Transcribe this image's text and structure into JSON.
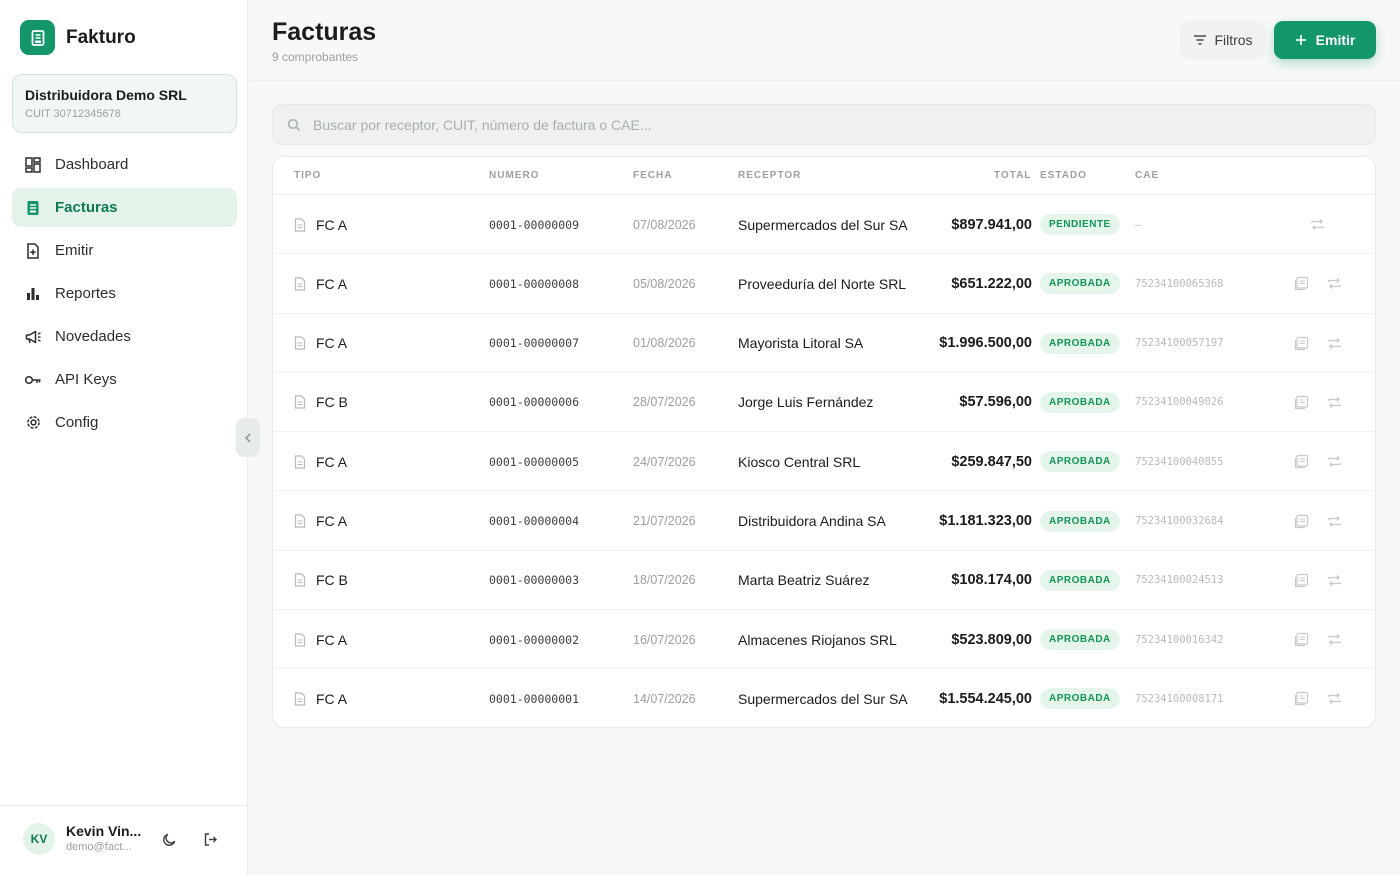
{
  "brand": {
    "name": "Fakturo"
  },
  "org": {
    "name": "Distribuidora Demo SRL",
    "cuit": "CUIT 30712345678"
  },
  "nav": [
    {
      "label": "Dashboard",
      "icon": "dashboard-icon"
    },
    {
      "label": "Facturas",
      "icon": "invoice-icon",
      "active": true
    },
    {
      "label": "Emitir",
      "icon": "file-plus-icon"
    },
    {
      "label": "Reportes",
      "icon": "bar-chart-icon"
    },
    {
      "label": "Novedades",
      "icon": "megaphone-icon"
    },
    {
      "label": "API Keys",
      "icon": "key-icon"
    },
    {
      "label": "Config",
      "icon": "gear-icon"
    }
  ],
  "user": {
    "initials": "KV",
    "name": "Kevin Vin...",
    "email": "demo@fact..."
  },
  "header": {
    "title": "Facturas",
    "subtitle": "9 comprobantes",
    "filter_label": "Filtros",
    "emit_label": "Emitir"
  },
  "search": {
    "placeholder": "Buscar por receptor, CUIT, número de factura o CAE..."
  },
  "table": {
    "columns": {
      "tipo": "TIPO",
      "numero": "NUMERO",
      "fecha": "FECHA",
      "receptor": "RECEPTOR",
      "total": "TOTAL",
      "estado": "ESTADO",
      "cae": "CAE"
    },
    "rows": [
      {
        "tipo": "FC A",
        "numero": "0001-00000009",
        "fecha": "07/08/2026",
        "receptor": "Supermercados del Sur SA",
        "total": "$897.941,00",
        "estado": "PENDIENTE",
        "cae": "–"
      },
      {
        "tipo": "FC A",
        "numero": "0001-00000008",
        "fecha": "05/08/2026",
        "receptor": "Proveeduría del Norte SRL",
        "total": "$651.222,00",
        "estado": "APROBADA",
        "cae": "75234100065368"
      },
      {
        "tipo": "FC A",
        "numero": "0001-00000007",
        "fecha": "01/08/2026",
        "receptor": "Mayorista Litoral SA",
        "total": "$1.996.500,00",
        "estado": "APROBADA",
        "cae": "75234100057197"
      },
      {
        "tipo": "FC B",
        "numero": "0001-00000006",
        "fecha": "28/07/2026",
        "receptor": "Jorge Luis Fernández",
        "total": "$57.596,00",
        "estado": "APROBADA",
        "cae": "75234100049026"
      },
      {
        "tipo": "FC A",
        "numero": "0001-00000005",
        "fecha": "24/07/2026",
        "receptor": "Kiosco Central SRL",
        "total": "$259.847,50",
        "estado": "APROBADA",
        "cae": "75234100040855"
      },
      {
        "tipo": "FC A",
        "numero": "0001-00000004",
        "fecha": "21/07/2026",
        "receptor": "Distribuidora Andina SA",
        "total": "$1.181.323,00",
        "estado": "APROBADA",
        "cae": "75234100032684"
      },
      {
        "tipo": "FC B",
        "numero": "0001-00000003",
        "fecha": "18/07/2026",
        "receptor": "Marta Beatriz Suárez",
        "total": "$108.174,00",
        "estado": "APROBADA",
        "cae": "75234100024513"
      },
      {
        "tipo": "FC A",
        "numero": "0001-00000002",
        "fecha": "16/07/2026",
        "receptor": "Almacenes Riojanos SRL",
        "total": "$523.809,00",
        "estado": "APROBADA",
        "cae": "75234100016342"
      },
      {
        "tipo": "FC A",
        "numero": "0001-00000001",
        "fecha": "14/07/2026",
        "receptor": "Supermercados del Sur SA",
        "total": "$1.554.245,00",
        "estado": "APROBADA",
        "cae": "75234100008171"
      }
    ]
  },
  "colors": {
    "accent": "#13966a",
    "approved_bg": "#e6f5ec",
    "approved_fg": "#129658",
    "pending_bg": "#e6f5ec",
    "pending_fg": "#129658"
  }
}
